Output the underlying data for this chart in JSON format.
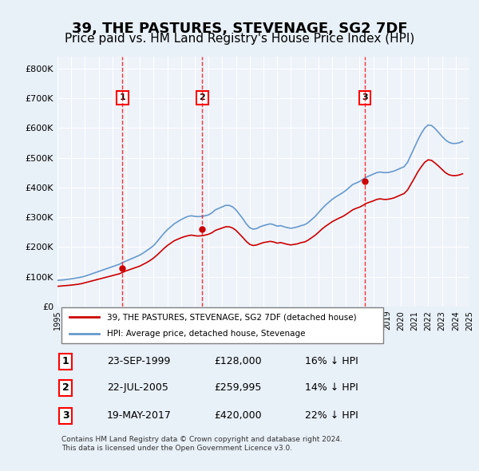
{
  "title": "39, THE PASTURES, STEVENAGE, SG2 7DF",
  "subtitle": "Price paid vs. HM Land Registry's House Price Index (HPI)",
  "title_fontsize": 13,
  "subtitle_fontsize": 11,
  "ylabel": "",
  "xlabel": "",
  "ylim": [
    0,
    840000
  ],
  "yticks": [
    0,
    100000,
    200000,
    300000,
    400000,
    500000,
    600000,
    700000,
    800000
  ],
  "ytick_labels": [
    "£0",
    "£100K",
    "£200K",
    "£300K",
    "£400K",
    "£500K",
    "£600K",
    "£700K",
    "£800K"
  ],
  "bg_color": "#e8f0f8",
  "plot_bg_color": "#eef3fa",
  "grid_color": "#ffffff",
  "sale_dates": [
    1999.73,
    2005.55,
    2017.38
  ],
  "sale_prices": [
    128000,
    259995,
    420000
  ],
  "sale_labels": [
    "1",
    "2",
    "3"
  ],
  "legend_line1": "39, THE PASTURES, STEVENAGE, SG2 7DF (detached house)",
  "legend_line2": "HPI: Average price, detached house, Stevenage",
  "line_color_red": "#cc0000",
  "line_color_blue": "#6699cc",
  "table_rows": [
    [
      "1",
      "23-SEP-1999",
      "£128,000",
      "16% ↓ HPI"
    ],
    [
      "2",
      "22-JUL-2005",
      "£259,995",
      "14% ↓ HPI"
    ],
    [
      "3",
      "19-MAY-2017",
      "£420,000",
      "22% ↓ HPI"
    ]
  ],
  "footnote": "Contains HM Land Registry data © Crown copyright and database right 2024.\nThis data is licensed under the Open Government Licence v3.0.",
  "hpi_years": [
    1995.0,
    1995.25,
    1995.5,
    1995.75,
    1996.0,
    1996.25,
    1996.5,
    1996.75,
    1997.0,
    1997.25,
    1997.5,
    1997.75,
    1998.0,
    1998.25,
    1998.5,
    1998.75,
    1999.0,
    1999.25,
    1999.5,
    1999.75,
    2000.0,
    2000.25,
    2000.5,
    2000.75,
    2001.0,
    2001.25,
    2001.5,
    2001.75,
    2002.0,
    2002.25,
    2002.5,
    2002.75,
    2003.0,
    2003.25,
    2003.5,
    2003.75,
    2004.0,
    2004.25,
    2004.5,
    2004.75,
    2005.0,
    2005.25,
    2005.5,
    2005.75,
    2006.0,
    2006.25,
    2006.5,
    2006.75,
    2007.0,
    2007.25,
    2007.5,
    2007.75,
    2008.0,
    2008.25,
    2008.5,
    2008.75,
    2009.0,
    2009.25,
    2009.5,
    2009.75,
    2010.0,
    2010.25,
    2010.5,
    2010.75,
    2011.0,
    2011.25,
    2011.5,
    2011.75,
    2012.0,
    2012.25,
    2012.5,
    2012.75,
    2013.0,
    2013.25,
    2013.5,
    2013.75,
    2014.0,
    2014.25,
    2014.5,
    2014.75,
    2015.0,
    2015.25,
    2015.5,
    2015.75,
    2016.0,
    2016.25,
    2016.5,
    2016.75,
    2017.0,
    2017.25,
    2017.5,
    2017.75,
    2018.0,
    2018.25,
    2018.5,
    2018.75,
    2019.0,
    2019.25,
    2019.5,
    2019.75,
    2020.0,
    2020.25,
    2020.5,
    2020.75,
    2021.0,
    2021.25,
    2021.5,
    2021.75,
    2022.0,
    2022.25,
    2022.5,
    2022.75,
    2023.0,
    2023.25,
    2023.5,
    2023.75,
    2024.0,
    2024.25,
    2024.5
  ],
  "hpi_values": [
    88000,
    89000,
    90000,
    91500,
    93000,
    95000,
    97000,
    99000,
    102000,
    106000,
    110000,
    114000,
    118000,
    122000,
    126000,
    130000,
    134000,
    138000,
    142000,
    148000,
    153000,
    158000,
    163000,
    168000,
    173000,
    180000,
    188000,
    196000,
    205000,
    218000,
    232000,
    246000,
    258000,
    268000,
    278000,
    285000,
    292000,
    298000,
    303000,
    305000,
    303000,
    302000,
    303000,
    305000,
    308000,
    315000,
    325000,
    330000,
    335000,
    340000,
    340000,
    335000,
    325000,
    310000,
    295000,
    278000,
    265000,
    260000,
    262000,
    268000,
    272000,
    275000,
    278000,
    275000,
    270000,
    272000,
    268000,
    265000,
    263000,
    265000,
    268000,
    272000,
    275000,
    282000,
    292000,
    302000,
    315000,
    328000,
    340000,
    350000,
    360000,
    368000,
    375000,
    382000,
    390000,
    400000,
    410000,
    415000,
    420000,
    428000,
    435000,
    440000,
    445000,
    450000,
    452000,
    450000,
    450000,
    452000,
    455000,
    460000,
    465000,
    470000,
    485000,
    510000,
    535000,
    560000,
    582000,
    600000,
    610000,
    608000,
    598000,
    585000,
    572000,
    560000,
    552000,
    548000,
    548000,
    550000,
    555000
  ],
  "price_paid_years": [
    1995.0,
    1995.25,
    1995.5,
    1995.75,
    1996.0,
    1996.25,
    1996.5,
    1996.75,
    1997.0,
    1997.25,
    1997.5,
    1997.75,
    1998.0,
    1998.25,
    1998.5,
    1998.75,
    1999.0,
    1999.25,
    1999.5,
    1999.75,
    2000.0,
    2000.25,
    2000.5,
    2000.75,
    2001.0,
    2001.25,
    2001.5,
    2001.75,
    2002.0,
    2002.25,
    2002.5,
    2002.75,
    2003.0,
    2003.25,
    2003.5,
    2003.75,
    2004.0,
    2004.25,
    2004.5,
    2004.75,
    2005.0,
    2005.25,
    2005.5,
    2005.75,
    2006.0,
    2006.25,
    2006.5,
    2006.75,
    2007.0,
    2007.25,
    2007.5,
    2007.75,
    2008.0,
    2008.25,
    2008.5,
    2008.75,
    2009.0,
    2009.25,
    2009.5,
    2009.75,
    2010.0,
    2010.25,
    2010.5,
    2010.75,
    2011.0,
    2011.25,
    2011.5,
    2011.75,
    2012.0,
    2012.25,
    2012.5,
    2012.75,
    2013.0,
    2013.25,
    2013.5,
    2013.75,
    2014.0,
    2014.25,
    2014.5,
    2014.75,
    2015.0,
    2015.25,
    2015.5,
    2015.75,
    2016.0,
    2016.25,
    2016.5,
    2016.75,
    2017.0,
    2017.25,
    2017.5,
    2017.75,
    2018.0,
    2018.25,
    2018.5,
    2018.75,
    2019.0,
    2019.25,
    2019.5,
    2019.75,
    2020.0,
    2020.25,
    2020.5,
    2020.75,
    2021.0,
    2021.25,
    2021.5,
    2021.75,
    2022.0,
    2022.25,
    2022.5,
    2022.75,
    2023.0,
    2023.25,
    2023.5,
    2023.75,
    2024.0,
    2024.25,
    2024.5
  ],
  "price_paid_values": [
    68000,
    69000,
    70000,
    71000,
    72000,
    73500,
    75000,
    77000,
    80000,
    83000,
    86000,
    89000,
    92000,
    95000,
    98000,
    101000,
    104000,
    107000,
    110000,
    115000,
    120000,
    124000,
    128000,
    132000,
    136000,
    142000,
    148000,
    155000,
    163000,
    173000,
    184000,
    195000,
    205000,
    213000,
    221000,
    226000,
    231000,
    235000,
    238000,
    240000,
    238000,
    237000,
    238000,
    240000,
    243000,
    248000,
    256000,
    260000,
    264000,
    268000,
    268000,
    264000,
    256000,
    244000,
    232000,
    219000,
    209000,
    205000,
    207000,
    211000,
    215000,
    217000,
    219000,
    217000,
    213000,
    215000,
    212000,
    209000,
    207000,
    209000,
    211000,
    215000,
    217000,
    223000,
    231000,
    239000,
    249000,
    260000,
    269000,
    277000,
    285000,
    291000,
    297000,
    302000,
    309000,
    317000,
    325000,
    330000,
    334000,
    340000,
    347000,
    351000,
    355000,
    360000,
    362000,
    360000,
    360000,
    362000,
    365000,
    370000,
    375000,
    380000,
    392000,
    412000,
    432000,
    453000,
    470000,
    485000,
    493000,
    491000,
    482000,
    472000,
    461000,
    450000,
    443000,
    440000,
    440000,
    442000,
    446000
  ]
}
